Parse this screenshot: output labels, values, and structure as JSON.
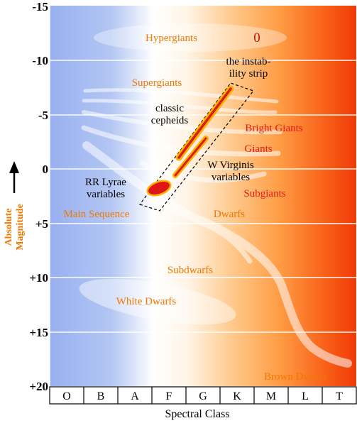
{
  "y_axis": {
    "title_line1": "Absolute",
    "title_line2": "Magnitude",
    "ticks": [
      "-15",
      "-10",
      "-5",
      "0",
      "+5",
      "+10",
      "+15",
      "+20"
    ]
  },
  "x_axis": {
    "title": "Spectral Class",
    "classes": [
      "O",
      "B",
      "A",
      "F",
      "G",
      "K",
      "M",
      "L",
      "T"
    ]
  },
  "labels": {
    "hypergiants": "Hypergiants",
    "zero": "0",
    "instability_line1": "the instab-",
    "instability_line2": "ility strip",
    "supergiants": "Supergiants",
    "classic_line1": "classic",
    "classic_line2": "cepheids",
    "bright_giants": "Bright Giants",
    "giants": "Giants",
    "wvir_line1": "W Virginis",
    "wvir_line2": "variables",
    "rr_line1": "RR Lyrae",
    "rr_line2": "variables",
    "subgiants": "Subgiants",
    "main_sequence": "Main Sequence",
    "dwarfs": "Dwarfs",
    "subdwarfs": "Subdwarfs",
    "white_dwarfs": "White Dwarfs",
    "brown_dwarfs": "Brown Dwarfs"
  },
  "colors": {
    "hot_blue": "#9db4f0",
    "cool_red": "#f03c0a",
    "label_orange": "#f07800",
    "label_red": "#e51a1a"
  }
}
